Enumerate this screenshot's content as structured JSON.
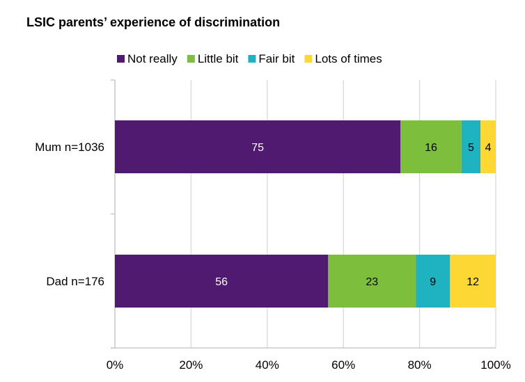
{
  "chart_data": {
    "type": "bar",
    "orientation": "horizontal",
    "stacked": true,
    "title": "LSIC parents’ experience of discrimination",
    "categories": [
      "Mum n=1036",
      "Dad n=176"
    ],
    "series": [
      {
        "name": "Not really",
        "values": [
          75,
          56
        ],
        "color": "#4f1a70",
        "label_color": "#ffffff"
      },
      {
        "name": "Little bit",
        "values": [
          16,
          23
        ],
        "color": "#7dbf3d",
        "label_color": "#000000"
      },
      {
        "name": "Fair bit",
        "values": [
          5,
          9
        ],
        "color": "#1fb2c0",
        "label_color": "#000000"
      },
      {
        "name": "Lots of times",
        "values": [
          4,
          12
        ],
        "color": "#fdd835",
        "label_color": "#000000"
      }
    ],
    "xaxis": {
      "ticks": [
        "0%",
        "20%",
        "40%",
        "60%",
        "80%",
        "100%"
      ],
      "xlim": [
        0,
        100
      ]
    },
    "grid": true,
    "legend_position": "top"
  }
}
